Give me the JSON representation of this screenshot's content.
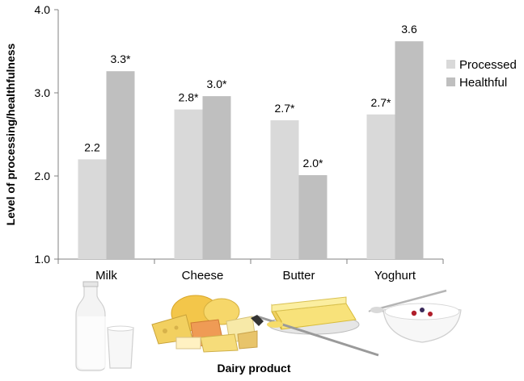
{
  "chart_data": {
    "type": "bar",
    "title": "",
    "xlabel": "Dairy product",
    "ylabel": "Level of processing/healthfulness",
    "categories": [
      "Milk",
      "Cheese",
      "Butter",
      "Yoghurt"
    ],
    "ylim": [
      1.0,
      4.0
    ],
    "yticks": [
      "1.0",
      "2.0",
      "3.0",
      "4.0"
    ],
    "series": [
      {
        "name": "Processed",
        "values": [
          2.2,
          2.8,
          2.67,
          2.74
        ],
        "labels": [
          "2.2",
          "2.8*",
          "2.7*",
          "2.7*"
        ],
        "color": "#d9d9d9"
      },
      {
        "name": "Healthful",
        "values": [
          3.26,
          2.96,
          2.01,
          3.62
        ],
        "labels": [
          "3.3*",
          "3.0*",
          "2.0*",
          "3.6"
        ],
        "color": "#bfbfbf"
      }
    ],
    "legend_position": "right",
    "grid": false,
    "category_icons": [
      "milk-bottle-icon",
      "cheese-assortment-icon",
      "butter-dish-icon",
      "yoghurt-bowl-icon"
    ]
  }
}
